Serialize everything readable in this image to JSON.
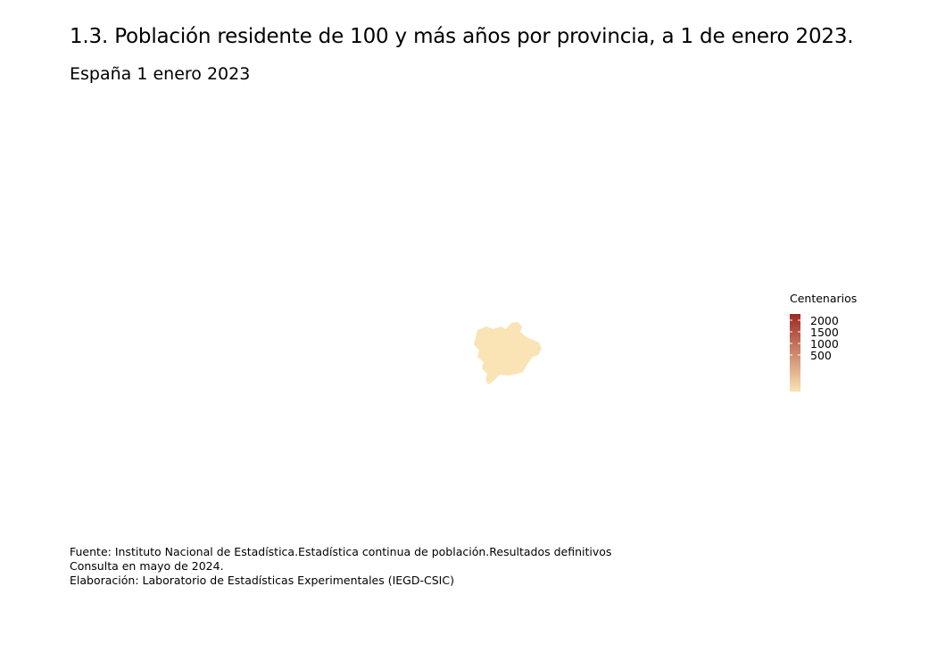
{
  "title": "1.3. Población residente de 100 y más años por provincia, a 1 de enero 2023.",
  "subtitle": "España 1 enero 2023",
  "legend": {
    "title": "Centenarios",
    "ticks": [
      "2000",
      "1500",
      "1000",
      "500"
    ],
    "colors": {
      "low": "#fae3b4",
      "high": "#9e2a22"
    }
  },
  "map": {
    "regions": [
      {
        "name": "Albacete",
        "fill": "#fae3b4"
      }
    ]
  },
  "caption": {
    "line1": "Fuente: Instituto Nacional de Estadística.Estadística continua de población.Resultados definitivos",
    "line2": "Consulta en mayo de 2024.",
    "line3": "Elaboración: Laboratorio de Estadísticas Experimentales (IEGD-CSIC)"
  }
}
